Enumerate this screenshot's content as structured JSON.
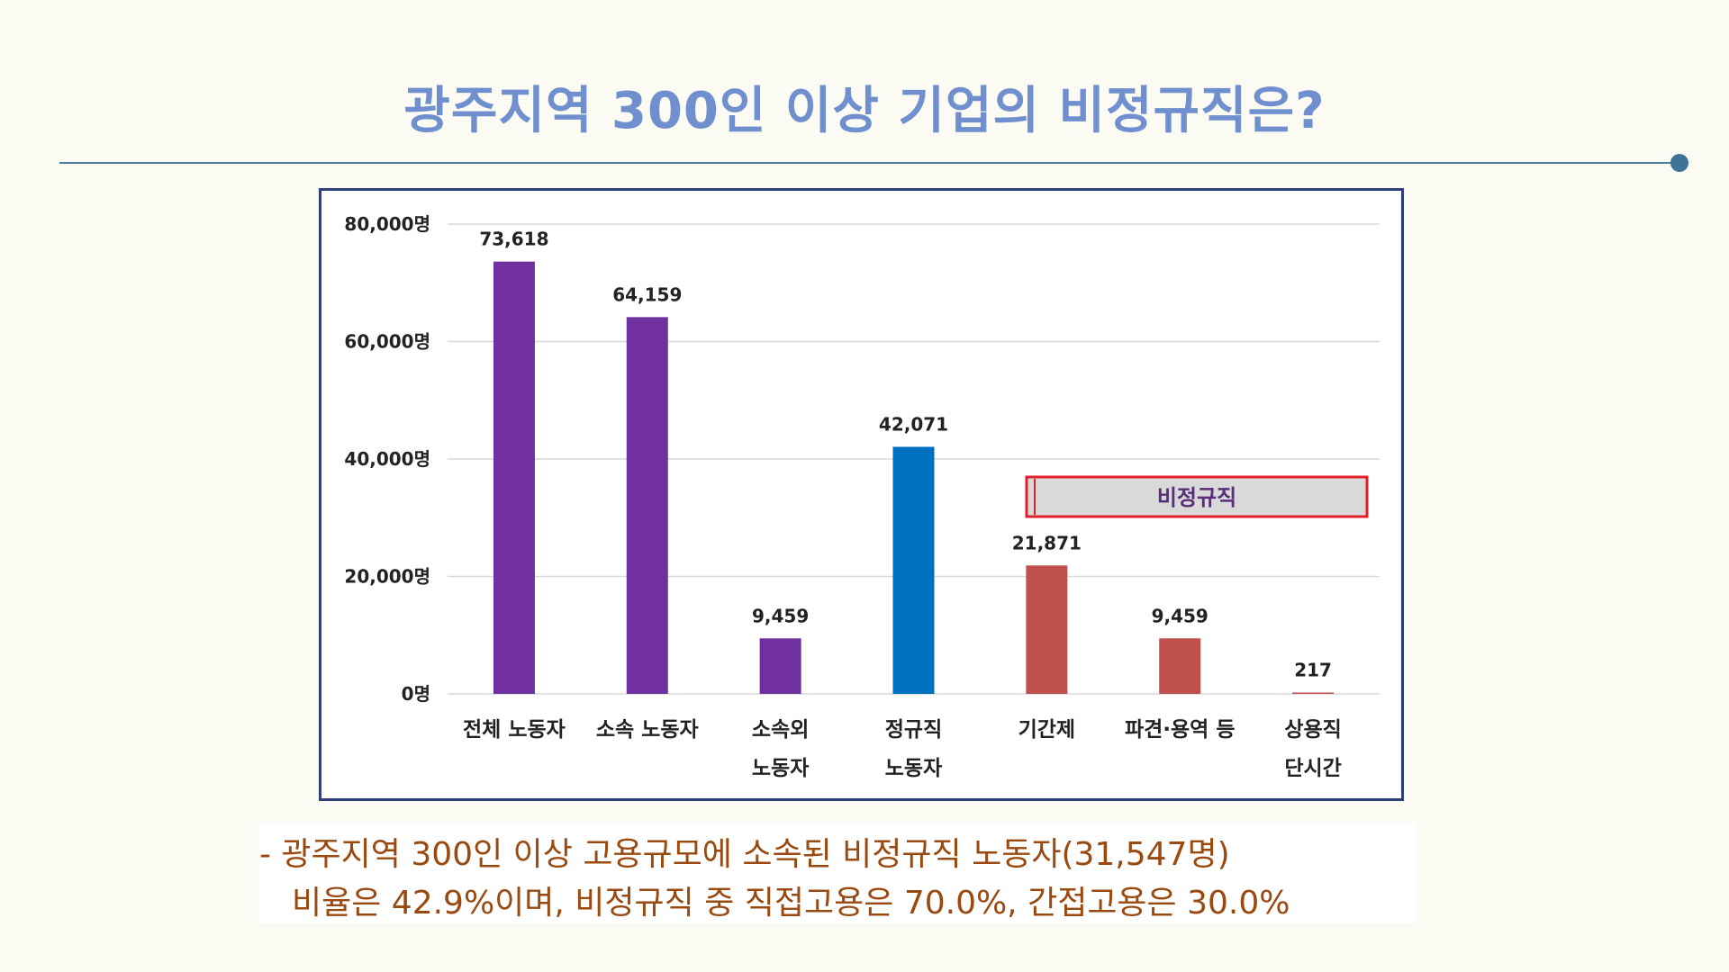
{
  "page": {
    "title": "광주지역 300인 이상 기업의 비정규직은?"
  },
  "chart_data": {
    "type": "bar",
    "categories": [
      [
        "전체 노동자"
      ],
      [
        "소속 노동자"
      ],
      [
        "소속외",
        "노동자"
      ],
      [
        "정규직",
        "노동자"
      ],
      [
        "기간제"
      ],
      [
        "파견·용역 등"
      ],
      [
        "상용직",
        "단시간"
      ]
    ],
    "values": [
      73618,
      64159,
      9459,
      42071,
      21871,
      9459,
      217
    ],
    "data_labels": [
      "73,618",
      "64,159",
      "9,459",
      "42,071",
      "21,871",
      "9,459",
      "217"
    ],
    "bar_colors": [
      "#7030a0",
      "#7030a0",
      "#7030a0",
      "#0070c0",
      "#c0504d",
      "#c0504d",
      "#c0504d"
    ],
    "ylim": [
      0,
      80000
    ],
    "yticks": [
      0,
      20000,
      40000,
      60000,
      80000
    ],
    "ytick_labels": [
      "0명",
      "20,000명",
      "40,000명",
      "60,000명",
      "80,000명"
    ],
    "grid": true,
    "annotation": {
      "text": "비정규직",
      "fill": "#d9d9d9",
      "border": "#e0202a"
    }
  },
  "caption": {
    "line1": "- 광주지역 300인 이상 고용규모에 소속된 비정규직 노동자(31,547명)",
    "line2": "비율은 42.9%이며, 비정규직 중 직접고용은 70.0%, 간접고용은 30.0%"
  },
  "colors": {
    "title": "#6f8fce",
    "divider": "#4a7fa0",
    "chart_border": "#2f3f7a",
    "caption_text": "#9a4a10"
  }
}
